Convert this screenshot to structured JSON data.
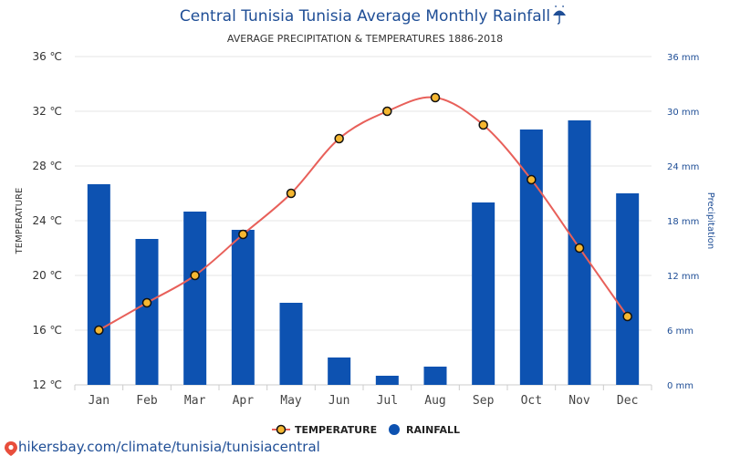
{
  "chart_data": {
    "type": "bar+line",
    "title": "Central Tunisia Tunisia Average Monthly Rainfall",
    "title_icon": "umbrella-rain-icon",
    "subtitle": "AVERAGE PRECIPITATION & TEMPERATURES 1886-2018",
    "categories": [
      "Jan",
      "Feb",
      "Mar",
      "Apr",
      "May",
      "Jun",
      "Jul",
      "Aug",
      "Sep",
      "Oct",
      "Nov",
      "Dec"
    ],
    "series": [
      {
        "name": "TEMPERATURE",
        "type": "line",
        "axis": "left",
        "color": "#e8605a",
        "marker_fill": "#f5b731",
        "values": [
          16,
          18,
          20,
          23,
          26,
          30,
          32,
          33,
          31,
          27,
          22,
          17
        ]
      },
      {
        "name": "RAINFALL",
        "type": "bar",
        "axis": "right",
        "color": "#0d52b1",
        "values": [
          22,
          16,
          19,
          17,
          9,
          3,
          1,
          2,
          20,
          28,
          29,
          21
        ]
      }
    ],
    "y_left": {
      "label": "TEMPERATURE",
      "min": 12,
      "max": 36,
      "ticks": [
        "12 ℃",
        "16 ℃",
        "20 ℃",
        "24 ℃",
        "28 ℃",
        "32 ℃",
        "36 ℃"
      ]
    },
    "y_right": {
      "label": "Precipitation",
      "min": 0,
      "max": 36,
      "ticks": [
        "0 mm",
        "6 mm",
        "12 mm",
        "18 mm",
        "24 mm",
        "30 mm",
        "36 mm"
      ]
    },
    "grid": true,
    "legend_position": "bottom-center"
  },
  "source": "hikersbay.com/climate/tunisia/tunisiacentral",
  "source_icon": "location-pin-icon"
}
